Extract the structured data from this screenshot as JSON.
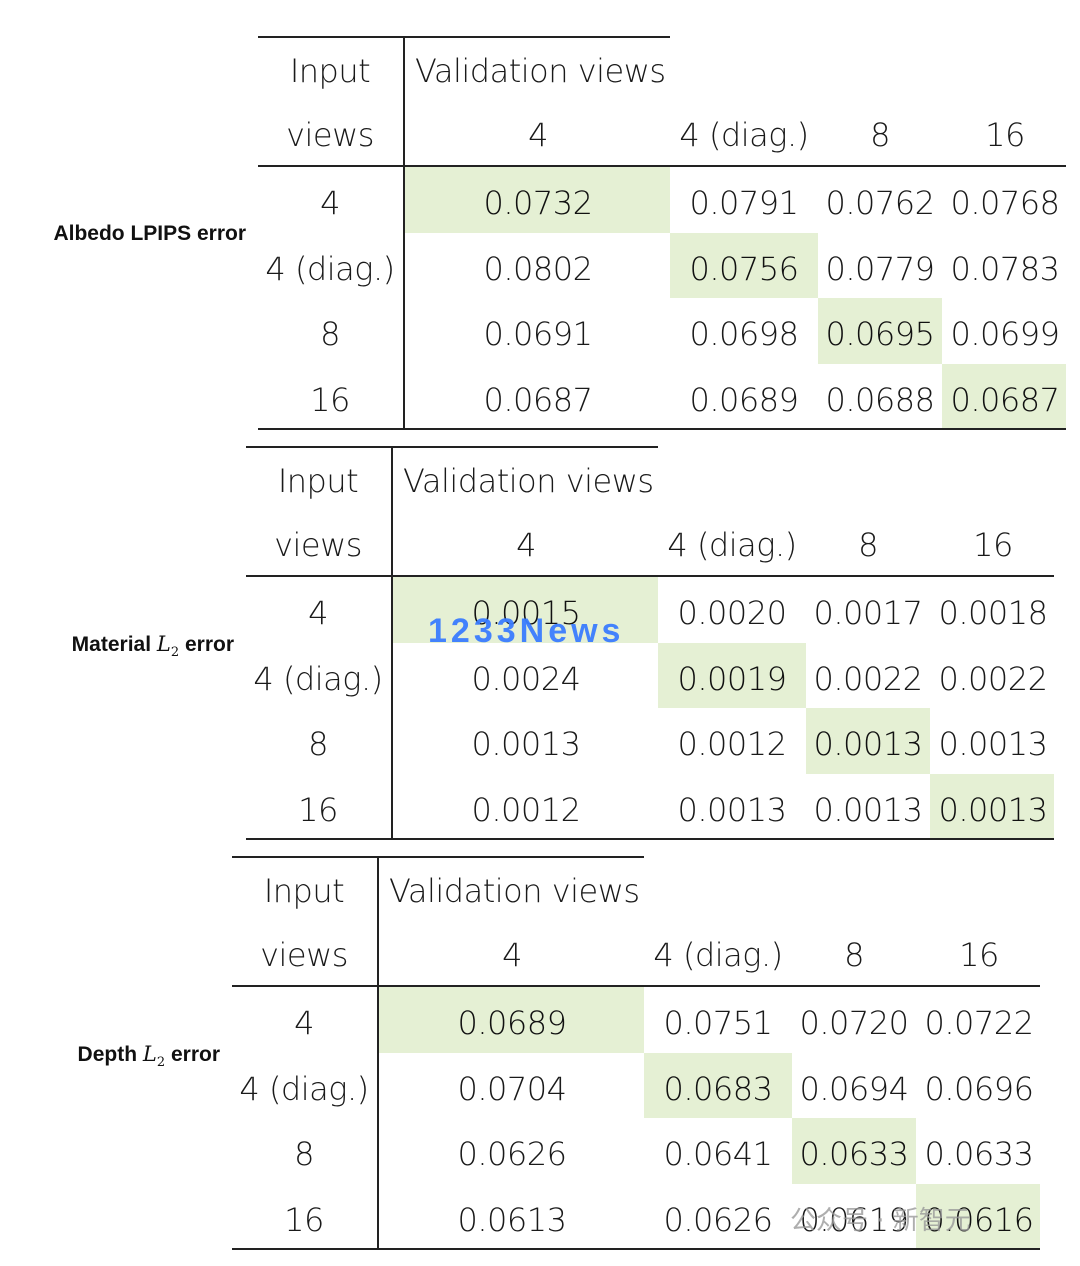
{
  "header": {
    "input_label_1": "Input",
    "input_label_2": "views",
    "validation_label": "Validation views",
    "columns": [
      "4",
      "4 (diag.)",
      "8",
      "16"
    ]
  },
  "row_labels": [
    "4",
    "4 (diag.)",
    "8",
    "16"
  ],
  "tables": [
    {
      "metric_prefix": "Albedo LPIPS error",
      "metric_symbol": "",
      "metric_sub": "",
      "metric_suffix": "",
      "rows": [
        [
          "0.0732",
          "0.0791",
          "0.0762",
          "0.0768"
        ],
        [
          "0.0802",
          "0.0756",
          "0.0779",
          "0.0783"
        ],
        [
          "0.0691",
          "0.0698",
          "0.0695",
          "0.0699"
        ],
        [
          "0.0687",
          "0.0689",
          "0.0688",
          "0.0687"
        ]
      ]
    },
    {
      "metric_prefix": "Material",
      "metric_symbol": "L",
      "metric_sub": "2",
      "metric_suffix": "error",
      "rows": [
        [
          "0.0015",
          "0.0020",
          "0.0017",
          "0.0018"
        ],
        [
          "0.0024",
          "0.0019",
          "0.0022",
          "0.0022"
        ],
        [
          "0.0013",
          "0.0012",
          "0.0013",
          "0.0013"
        ],
        [
          "0.0012",
          "0.0013",
          "0.0013",
          "0.0013"
        ]
      ]
    },
    {
      "metric_prefix": "Depth",
      "metric_symbol": "L",
      "metric_sub": "2",
      "metric_suffix": "error",
      "rows": [
        [
          "0.0689",
          "0.0751",
          "0.0720",
          "0.0722"
        ],
        [
          "0.0704",
          "0.0683",
          "0.0694",
          "0.0696"
        ],
        [
          "0.0626",
          "0.0641",
          "0.0633",
          "0.0633"
        ],
        [
          "0.0613",
          "0.0626",
          "0.0619",
          "0.0616"
        ]
      ]
    }
  ],
  "highlight_color": "#e5f0d4",
  "watermark_text": "1233News",
  "watermark_source": "公众号 · 新智元"
}
